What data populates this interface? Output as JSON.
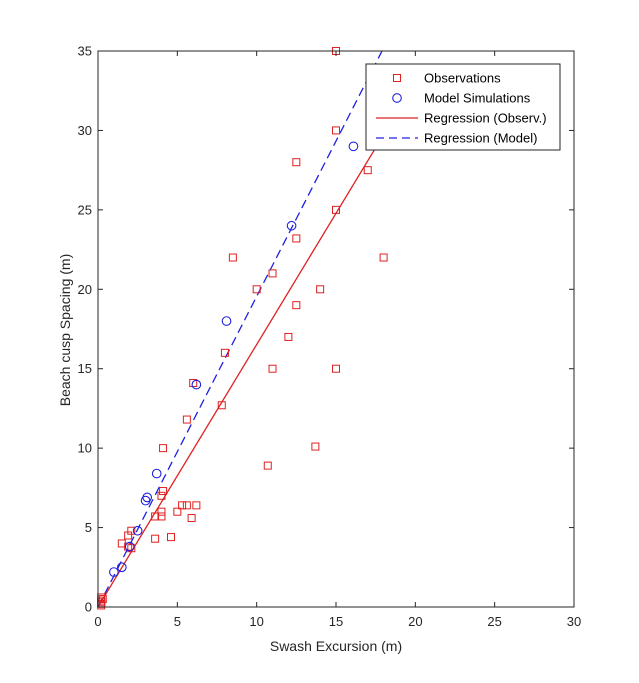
{
  "chart_data": {
    "type": "scatter",
    "xlabel": "Swash Excursion (m)",
    "ylabel": "Beach cusp Spacing (m)",
    "xlim": [
      0,
      30
    ],
    "ylim": [
      0,
      35
    ],
    "xticks": [
      0,
      5,
      10,
      15,
      20,
      25,
      30
    ],
    "yticks": [
      0,
      5,
      10,
      15,
      20,
      25,
      30,
      35
    ],
    "grid": false,
    "legend_position": "top-right",
    "colors": {
      "observations": "#e02020",
      "model": "#2020e0",
      "axis": "#262626"
    },
    "series": [
      {
        "name": "Observations",
        "kind": "scatter",
        "marker": "square",
        "points": [
          [
            0.2,
            0.1
          ],
          [
            0.2,
            0.2
          ],
          [
            0.2,
            0.3
          ],
          [
            0.2,
            0.4
          ],
          [
            0.3,
            0.5
          ],
          [
            0.2,
            0.6
          ],
          [
            1.5,
            4.0
          ],
          [
            1.9,
            4.5
          ],
          [
            2.1,
            4.8
          ],
          [
            1.9,
            3.8
          ],
          [
            2.1,
            3.7
          ],
          [
            3.6,
            5.7
          ],
          [
            3.6,
            4.3
          ],
          [
            4.0,
            5.7
          ],
          [
            4.0,
            6.0
          ],
          [
            4.0,
            7.0
          ],
          [
            4.1,
            7.3
          ],
          [
            4.1,
            10.0
          ],
          [
            4.6,
            4.4
          ],
          [
            5.0,
            6.0
          ],
          [
            5.3,
            6.4
          ],
          [
            5.6,
            6.4
          ],
          [
            5.9,
            5.6
          ],
          [
            6.2,
            6.4
          ],
          [
            5.6,
            11.8
          ],
          [
            6.0,
            14.1
          ],
          [
            7.8,
            12.7
          ],
          [
            8.0,
            16.0
          ],
          [
            8.5,
            22.0
          ],
          [
            10.0,
            20.0
          ],
          [
            10.7,
            8.9
          ],
          [
            11.0,
            21.0
          ],
          [
            11.0,
            15.0
          ],
          [
            12.0,
            17.0
          ],
          [
            12.5,
            19.0
          ],
          [
            12.5,
            23.2
          ],
          [
            12.5,
            28.0
          ],
          [
            13.7,
            10.1
          ],
          [
            14.0,
            20.0
          ],
          [
            15.0,
            15.0
          ],
          [
            15.0,
            25.0
          ],
          [
            15.0,
            30.0
          ],
          [
            15.0,
            35.0
          ],
          [
            17.0,
            27.5
          ],
          [
            18.0,
            22.0
          ]
        ]
      },
      {
        "name": "Model Simulations",
        "kind": "scatter",
        "marker": "circle",
        "points": [
          [
            1.0,
            2.2
          ],
          [
            1.5,
            2.5
          ],
          [
            2.0,
            3.8
          ],
          [
            2.5,
            4.8
          ],
          [
            3.0,
            6.7
          ],
          [
            3.1,
            6.9
          ],
          [
            3.7,
            8.4
          ],
          [
            6.2,
            14.0
          ],
          [
            8.1,
            18.0
          ],
          [
            12.2,
            24.0
          ],
          [
            16.1,
            29.0
          ]
        ]
      },
      {
        "name": "Regression (Observ.)",
        "kind": "line",
        "style": "solid",
        "x": [
          0,
          18.4
        ],
        "y": [
          0,
          30.4
        ]
      },
      {
        "name": "Regression (Model)",
        "kind": "line",
        "style": "dashed",
        "x": [
          0,
          17.9
        ],
        "y": [
          0,
          35
        ]
      }
    ]
  }
}
